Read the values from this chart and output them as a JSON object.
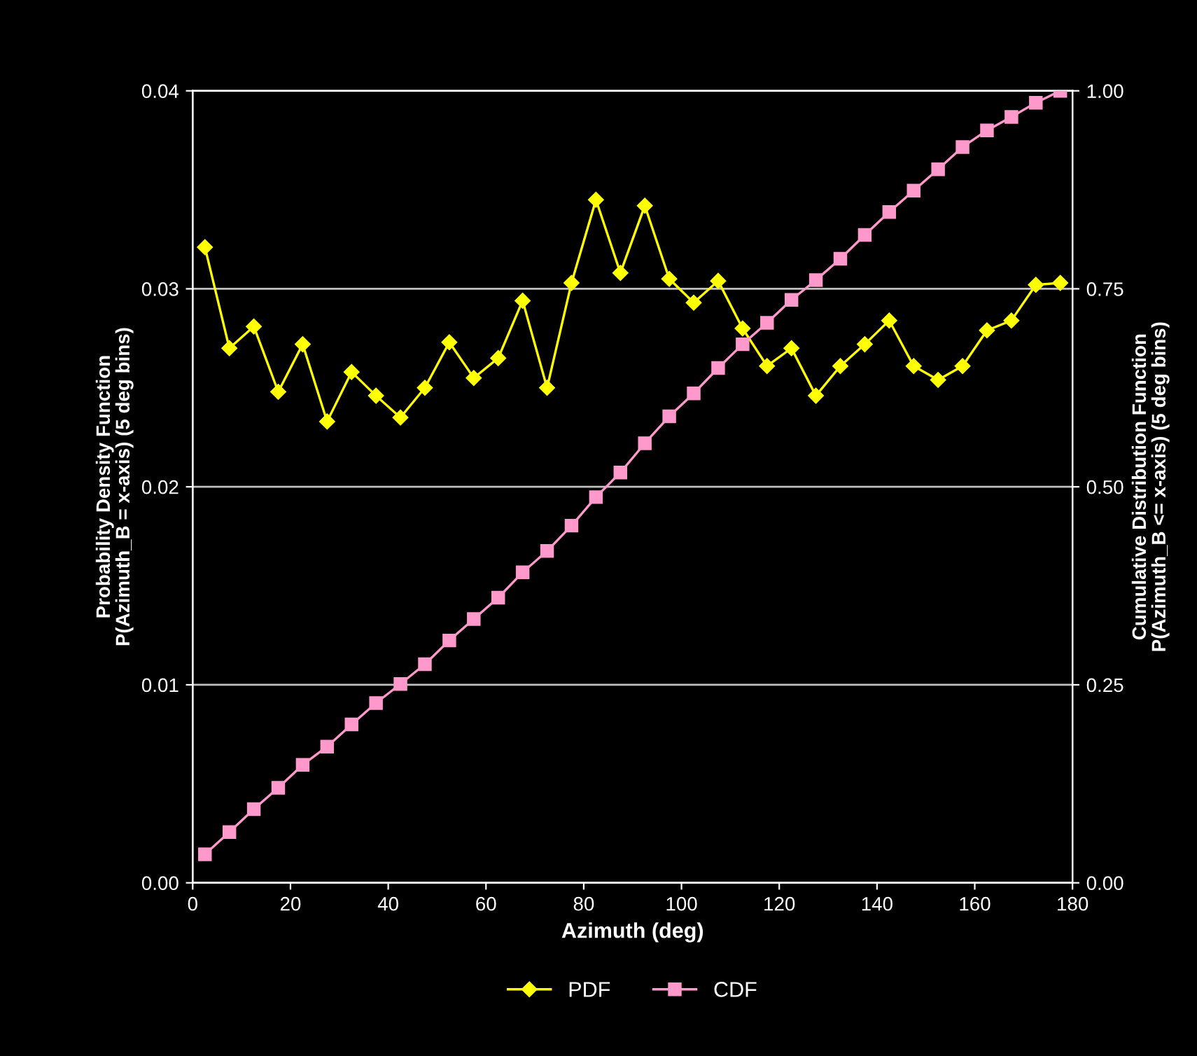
{
  "chart_data": {
    "type": "line",
    "xlabel": "Azimuth (deg)",
    "ylabel": "Probability Density Function\nP(Azimuth_B = x-axis) (5 deg bins)",
    "y2label": "Cumulative Distribution Function\nP(Azimuth_B <= x-axis) (5 deg bins)",
    "x": [
      2.5,
      7.5,
      12.5,
      17.5,
      22.5,
      27.5,
      32.5,
      37.5,
      42.5,
      47.5,
      52.5,
      57.5,
      62.5,
      67.5,
      72.5,
      77.5,
      82.5,
      87.5,
      92.5,
      97.5,
      102.5,
      107.5,
      112.5,
      117.5,
      122.5,
      127.5,
      132.5,
      137.5,
      142.5,
      147.5,
      152.5,
      157.5,
      162.5,
      167.5,
      172.5,
      177.5
    ],
    "series": [
      {
        "name": "PDF",
        "color": "#ffff00",
        "marker": "diamond",
        "values": [
          0.0321,
          0.027,
          0.0281,
          0.0248,
          0.0272,
          0.0233,
          0.0258,
          0.0246,
          0.0235,
          0.025,
          0.0273,
          0.0255,
          0.0265,
          0.0294,
          0.025,
          0.0303,
          0.0345,
          0.0308,
          0.0342,
          0.0305,
          0.0293,
          0.0304,
          0.028,
          0.0261,
          0.027,
          0.0246,
          0.0261,
          0.0272,
          0.0284,
          0.0261,
          0.0254,
          0.0261,
          0.0279,
          0.0284,
          0.0302,
          0.0303
        ]
      },
      {
        "name": "CDF",
        "color": "#ff99cc",
        "marker": "square",
        "axis": "y2",
        "values": [
          0.036,
          0.064,
          0.093,
          0.12,
          0.149,
          0.172,
          0.2,
          0.227,
          0.251,
          0.276,
          0.306,
          0.333,
          0.36,
          0.392,
          0.419,
          0.451,
          0.487,
          0.518,
          0.555,
          0.589,
          0.618,
          0.65,
          0.68,
          0.707,
          0.736,
          0.761,
          0.788,
          0.818,
          0.847,
          0.874,
          0.901,
          0.929,
          0.95,
          0.967,
          0.985,
          1.0
        ]
      }
    ],
    "xlim": [
      0,
      180
    ],
    "xticks": [
      0,
      20,
      40,
      60,
      80,
      100,
      120,
      140,
      160,
      180
    ],
    "ylim": [
      0,
      0.04
    ],
    "yticks": [
      {
        "value": 0,
        "label": "0.00"
      },
      {
        "value": 0.01,
        "label": "0.01"
      },
      {
        "value": 0.02,
        "label": "0.02"
      },
      {
        "value": 0.03,
        "label": "0.03"
      },
      {
        "value": 0.04,
        "label": "0.04"
      }
    ],
    "y2lim": [
      0,
      1
    ],
    "y2ticks": [
      {
        "value": 0,
        "label": "0.00"
      },
      {
        "value": 0.25,
        "label": "0.25"
      },
      {
        "value": 0.5,
        "label": "0.50"
      },
      {
        "value": 0.75,
        "label": "0.75"
      },
      {
        "value": 1,
        "label": "1.00"
      }
    ],
    "grid": "y",
    "legend": "bottom"
  }
}
